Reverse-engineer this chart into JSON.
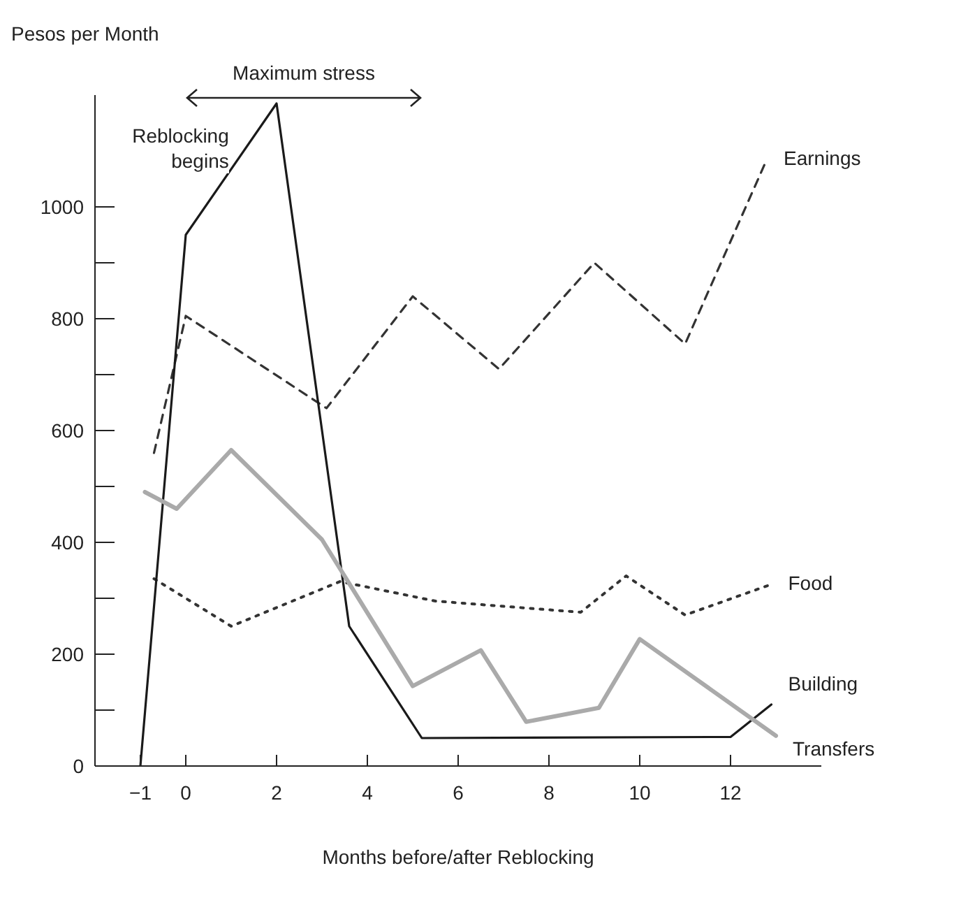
{
  "chart_data": {
    "type": "line",
    "ylabel": "Pesos per Month",
    "xlabel": "Months before/after Reblocking",
    "annotations": [
      "Maximum stress",
      "Reblocking begins"
    ],
    "xlim": [
      -2,
      14
    ],
    "xticks": [
      -1,
      0,
      2,
      4,
      6,
      8,
      10,
      12
    ],
    "ylim": [
      0,
      1200
    ],
    "yticks": [
      0,
      {
        "value": 100,
        "label": null
      },
      200,
      {
        "value": 300,
        "label": null
      },
      400,
      {
        "value": 500,
        "label": null
      },
      600,
      {
        "value": 700,
        "label": null
      },
      800,
      {
        "value": 900,
        "label": null
      },
      1000
    ],
    "marker": "none",
    "series": [
      {
        "name": "Earnings",
        "color": "#333333",
        "line_style": "dashed",
        "x": [
          -0.7,
          0,
          3.1,
          5,
          6.9,
          9,
          11,
          12.8
        ],
        "values": [
          560,
          805,
          640,
          840,
          710,
          900,
          755,
          1085
        ]
      },
      {
        "name": "Food",
        "color": "#333333",
        "line_style": "dotted",
        "x": [
          -0.7,
          1,
          3.4,
          5.5,
          8.7,
          9.7,
          11,
          12.9
        ],
        "values": [
          335,
          250,
          330,
          295,
          275,
          340,
          270,
          325
        ]
      },
      {
        "name": "Building",
        "color": "#1a1a1a",
        "line_style": "solid",
        "x": [
          -1,
          0,
          2,
          3.6,
          5.2,
          12,
          12.9
        ],
        "values": [
          0,
          950,
          1185,
          250,
          50,
          52,
          110
        ]
      },
      {
        "name": "Transfers",
        "color": "#aaaaaa",
        "line_style": "solid",
        "x": [
          -0.9,
          -0.2,
          1,
          3,
          5,
          6.5,
          7.5,
          9.1,
          10,
          13
        ],
        "values": [
          490,
          460,
          565,
          405,
          143,
          207,
          79,
          104,
          227,
          54
        ]
      }
    ]
  }
}
